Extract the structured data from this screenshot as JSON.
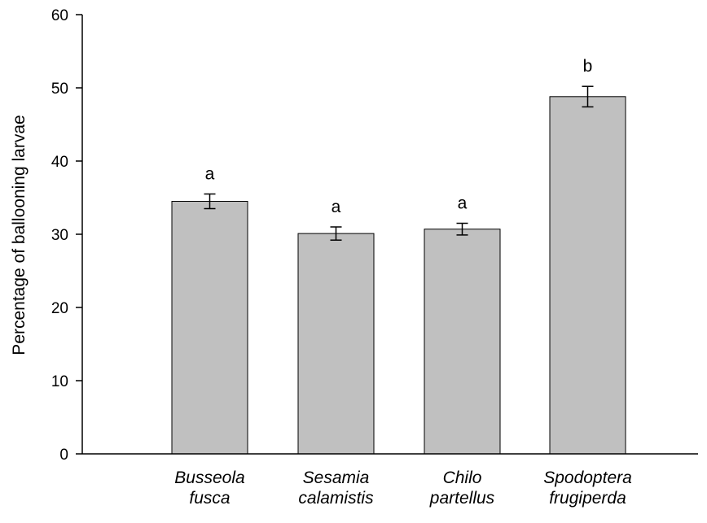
{
  "chart_data": {
    "type": "bar",
    "title": "",
    "xlabel": "",
    "ylabel": "Percentage of ballooning larvae",
    "ylim": [
      0,
      60
    ],
    "yticks": [
      0,
      10,
      20,
      30,
      40,
      50,
      60
    ],
    "grid": false,
    "categories": [
      [
        "Busseola",
        "fusca"
      ],
      [
        "Sesamia",
        "calamistis"
      ],
      [
        "Chilo",
        "partellus"
      ],
      [
        "Spodoptera",
        "frugiperda"
      ]
    ],
    "values": [
      34.5,
      30.1,
      30.7,
      48.8
    ],
    "errors": [
      1.0,
      0.9,
      0.8,
      1.4
    ],
    "significance_letters": [
      "a",
      "a",
      "a",
      "b"
    ],
    "bar_color": "#c0c0c0",
    "bar_edge_color": "#000000"
  }
}
